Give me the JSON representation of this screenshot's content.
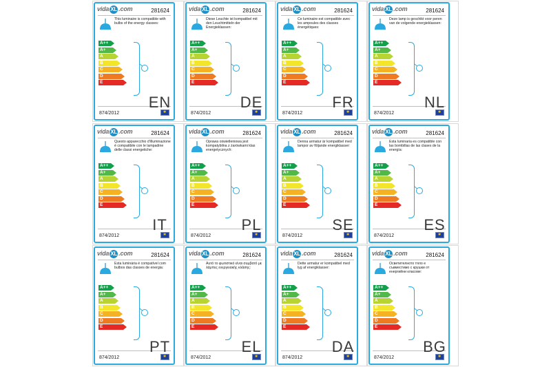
{
  "brand": {
    "logo_left": "vida",
    "logo_mid": "XL",
    "logo_right": ".com"
  },
  "product_code": "281624",
  "regulation": "874/2012",
  "classes": [
    "A++",
    "A+",
    "A",
    "B",
    "C",
    "D",
    "E"
  ],
  "class_colors": [
    "#12a04b",
    "#52b848",
    "#b8d432",
    "#f2e52a",
    "#f5b222",
    "#ee7a22",
    "#e52924"
  ],
  "labels": [
    {
      "lang": "EN",
      "text": "This luminaire is compatible with bulbs of the energy classes:"
    },
    {
      "lang": "DE",
      "text": "Diese Leuchte ist kompatibel mit den Leuchtmitteln der Energieklassen:"
    },
    {
      "lang": "FR",
      "text": "Ce luminaire est compatible avec les ampoules des classes énergétiques:"
    },
    {
      "lang": "NL",
      "text": "Deze lamp is geschikt voor peren van de volgende energieklassen:"
    },
    {
      "lang": "IT",
      "text": "Questo apparecchio d'illuminazione è compatibile con le lampadine delle classi energetiche:"
    },
    {
      "lang": "PL",
      "text": "Oprawa oświetleniowa jest kompatybilna z żarówkami klas energetycznych:"
    },
    {
      "lang": "SE",
      "text": "Denna armatur är kompatibel med lampor av följande energiklasser:"
    },
    {
      "lang": "ES",
      "text": "Esta luminaria es compatible con las bombillas de las clases de la energía:"
    },
    {
      "lang": "PT",
      "text": "Esta luminária é compatível com bulbos das classes de energia:"
    },
    {
      "lang": "EL",
      "text": "Αυτό το φωτιστικό είναι συμβατό με λάμπες ενεργειακής κλάσης:"
    },
    {
      "lang": "DA",
      "text": "Dette armatur er kompatibel med lyg af energiklasser:"
    },
    {
      "lang": "BG",
      "text": "Осветителното тяло е съвместимо с крушки от енергийни класове:"
    }
  ]
}
